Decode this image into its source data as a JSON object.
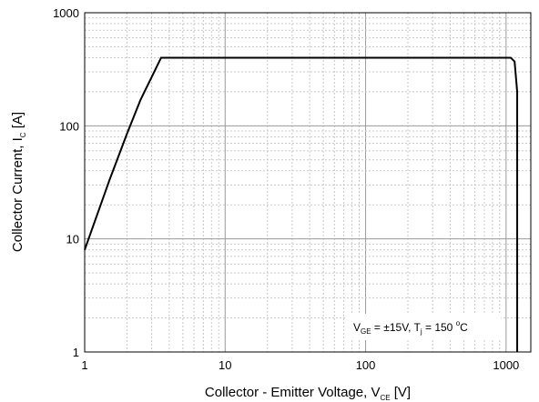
{
  "chart_data": {
    "type": "line",
    "x_scale": "log",
    "y_scale": "log",
    "xlim": [
      1,
      1500
    ],
    "ylim": [
      1,
      1000
    ],
    "grid": true,
    "x_ticks": [
      {
        "value": 1,
        "label": "1"
      },
      {
        "value": 10,
        "label": "10"
      },
      {
        "value": 100,
        "label": "100"
      },
      {
        "value": 1000,
        "label": "1000"
      }
    ],
    "y_ticks": [
      {
        "value": 1,
        "label": "1"
      },
      {
        "value": 10,
        "label": "10"
      },
      {
        "value": 100,
        "label": "100"
      },
      {
        "value": 1000,
        "label": "1000"
      }
    ],
    "xlabel": {
      "text": "Collector - Emitter Voltage, V",
      "sub": "CE",
      "unit": " [V]"
    },
    "ylabel": {
      "text": "Collector Current, I",
      "sub": "C",
      "unit": " [A]"
    },
    "annotation": {
      "v_prefix": "V",
      "v_sub": "GE",
      "v_mid": " = ±15V, T",
      "t_sub": "j",
      "t_mid": " = 150 ",
      "t_sup": "o",
      "t_end": "C"
    },
    "series": [
      {
        "x": [
          1,
          1.5,
          2,
          2.5,
          3,
          3.5,
          1080,
          1150,
          1200,
          1200
        ],
        "y": [
          8,
          33,
          85,
          170,
          270,
          400,
          400,
          370,
          200,
          1
        ]
      }
    ]
  }
}
